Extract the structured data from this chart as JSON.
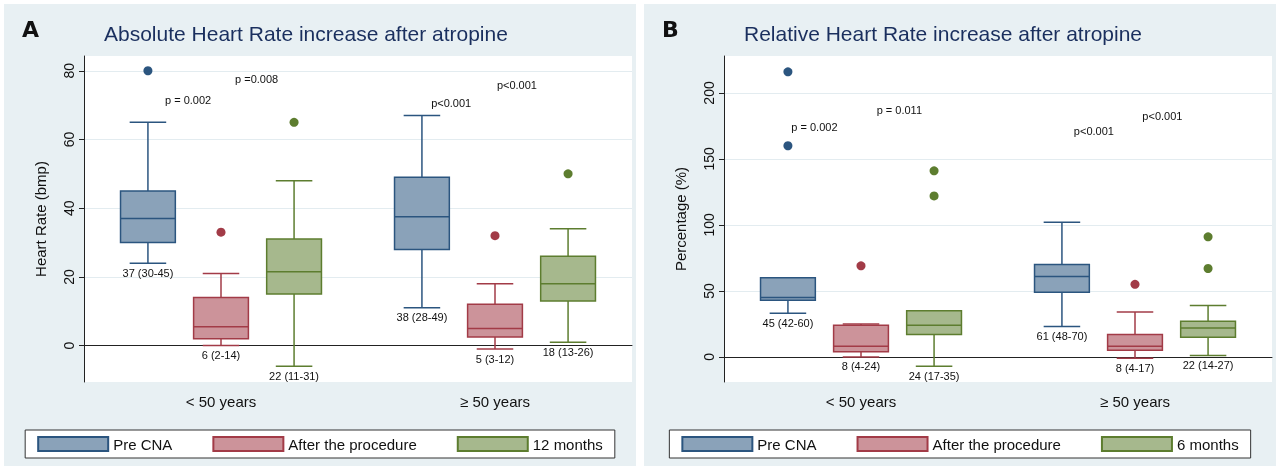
{
  "chart_data": [
    {
      "type": "box",
      "title": "Absolute Heart Rate increase after atropine",
      "ylabel": "Heart Rate (bmp)",
      "categories": [
        "< 50 years",
        "≥ 50 years"
      ],
      "ylim": [
        -10.6,
        84.3
      ],
      "yticks": [
        0,
        20,
        40,
        60,
        80
      ],
      "grid": "y",
      "legend": "bottom",
      "series": [
        {
          "name": "Pre CNA",
          "color": "#2b557f",
          "boxes": [
            {
              "low": 24,
              "q1": 30,
              "median": 37,
              "q3": 45,
              "high": 65,
              "outliers": [
                80
              ]
            },
            {
              "low": 11,
              "q1": 28,
              "median": 37.5,
              "q3": 49,
              "high": 67
            }
          ],
          "value_labels": [
            "37 (30-45)",
            "38 (28-49)"
          ]
        },
        {
          "name": "After the procedure",
          "color": "#a23b47",
          "boxes": [
            {
              "low": 0,
              "q1": 2,
              "median": 5.5,
              "q3": 14,
              "high": 21,
              "outliers": [
                33
              ]
            },
            {
              "low": -1,
              "q1": 2.5,
              "median": 5,
              "q3": 12,
              "high": 18,
              "outliers": [
                32
              ]
            }
          ],
          "value_labels": [
            "6 (2-14)",
            "5 (3-12)"
          ]
        },
        {
          "name": "12 months",
          "color": "#5d7d2f",
          "boxes": [
            {
              "low": -6,
              "q1": 15,
              "median": 21.5,
              "q3": 31,
              "high": 48,
              "outliers": [
                65
              ]
            },
            {
              "low": 1,
              "q1": 13,
              "median": 18,
              "q3": 26,
              "high": 34,
              "outliers": [
                50
              ]
            }
          ],
          "value_labels": [
            "22 (11-31)",
            "18 (13-26)"
          ]
        }
      ],
      "annotations": [
        "A",
        "p = 0.002",
        "p =0.008",
        "p<0.001",
        "p<0.001"
      ]
    },
    {
      "type": "box",
      "title": "Relative Heart Rate increase after atropine",
      "ylabel": "Percentage (%)",
      "categories": [
        "< 50 years",
        "≥ 50 years"
      ],
      "ylim": [
        -19,
        228
      ],
      "yticks": [
        0,
        50,
        100,
        150,
        200
      ],
      "grid": "y",
      "legend": "bottom",
      "series": [
        {
          "name": "Pre CNA",
          "color": "#2b557f",
          "boxes": [
            {
              "low": 33,
              "q1": 43,
              "median": 45,
              "q3": 60,
              "high": 60,
              "outliers": [
                216,
                160
              ]
            },
            {
              "low": 23,
              "q1": 49,
              "median": 61,
              "q3": 70,
              "high": 102
            }
          ],
          "value_labels": [
            "45 (42-60)",
            "61 (48-70)"
          ]
        },
        {
          "name": "After the procedure",
          "color": "#a23b47",
          "boxes": [
            {
              "low": 0,
              "q1": 4,
              "median": 8,
              "q3": 24,
              "high": 25,
              "outliers": [
                69
              ]
            },
            {
              "low": -1,
              "q1": 5,
              "median": 8,
              "q3": 17,
              "high": 34,
              "outliers": [
                55
              ]
            }
          ],
          "value_labels": [
            "8 (4-24)",
            "8 (4-17)"
          ]
        },
        {
          "name": "6 months",
          "color": "#5d7d2f",
          "boxes": [
            {
              "low": -7,
              "q1": 17,
              "median": 24,
              "q3": 35,
              "high": 35,
              "outliers": [
                141,
                122
              ]
            },
            {
              "low": 1,
              "q1": 15,
              "median": 22,
              "q3": 27,
              "high": 39,
              "outliers": [
                91,
                67
              ]
            }
          ],
          "value_labels": [
            "24 (17-35)",
            "22 (14-27)"
          ]
        }
      ],
      "annotations": [
        "B",
        "p = 0.002",
        "p = 0.011",
        "p<0.001",
        "p<0.001"
      ]
    }
  ]
}
